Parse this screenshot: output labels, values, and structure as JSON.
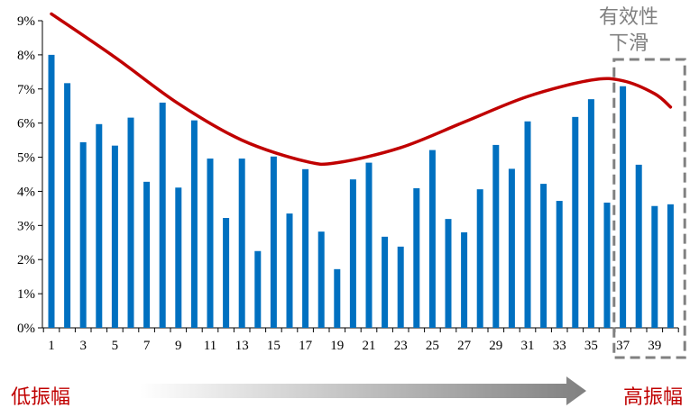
{
  "chart_data": {
    "type": "bar",
    "x": [
      1,
      2,
      3,
      4,
      5,
      6,
      7,
      8,
      9,
      10,
      11,
      12,
      13,
      14,
      15,
      16,
      17,
      18,
      19,
      20,
      21,
      22,
      23,
      24,
      25,
      26,
      27,
      28,
      29,
      30,
      31,
      32,
      33,
      34,
      35,
      36,
      37,
      38,
      39,
      40
    ],
    "x_tick_labels": [
      "1",
      "3",
      "5",
      "7",
      "9",
      "11",
      "13",
      "15",
      "17",
      "19",
      "21",
      "23",
      "25",
      "27",
      "29",
      "31",
      "33",
      "35",
      "37",
      "39"
    ],
    "values": [
      8.0,
      7.17,
      5.44,
      5.97,
      5.34,
      6.16,
      4.28,
      6.6,
      4.11,
      6.08,
      4.96,
      3.22,
      4.96,
      2.25,
      5.02,
      3.35,
      4.65,
      2.82,
      1.72,
      4.35,
      4.84,
      2.67,
      2.38,
      4.09,
      5.21,
      3.19,
      2.8,
      4.06,
      5.36,
      4.66,
      6.05,
      4.22,
      3.72,
      6.18,
      6.7,
      3.67,
      7.08,
      4.78,
      3.57,
      3.62
    ],
    "curve": [
      {
        "x": 1,
        "y": 9.2
      },
      {
        "x": 5,
        "y": 7.93
      },
      {
        "x": 9,
        "y": 6.57
      },
      {
        "x": 13,
        "y": 5.5
      },
      {
        "x": 17,
        "y": 4.88
      },
      {
        "x": 19,
        "y": 4.84
      },
      {
        "x": 23,
        "y": 5.28
      },
      {
        "x": 27,
        "y": 6.03
      },
      {
        "x": 31,
        "y": 6.78
      },
      {
        "x": 35,
        "y": 7.26
      },
      {
        "x": 37,
        "y": 7.24
      },
      {
        "x": 39,
        "y": 6.86
      },
      {
        "x": 40,
        "y": 6.47
      }
    ],
    "y_tick_labels": [
      "0%",
      "1%",
      "2%",
      "3%",
      "4%",
      "5%",
      "6%",
      "7%",
      "8%",
      "9%"
    ],
    "ylim": [
      0,
      9
    ],
    "bar_color": "#0070C0",
    "curve_color": "#C00000",
    "highlight_box": {
      "from_x": 37,
      "to_x": 40,
      "color": "#808080"
    },
    "annotations": {
      "highlight_label_line1": "有效性",
      "highlight_label_line2": "下滑",
      "left_label": "低振幅",
      "right_label": "高振幅"
    },
    "label_color": "#C00000",
    "grey_text_color": "#808080",
    "arrow_color_start": "#ffffff",
    "arrow_color_end": "#808080"
  }
}
